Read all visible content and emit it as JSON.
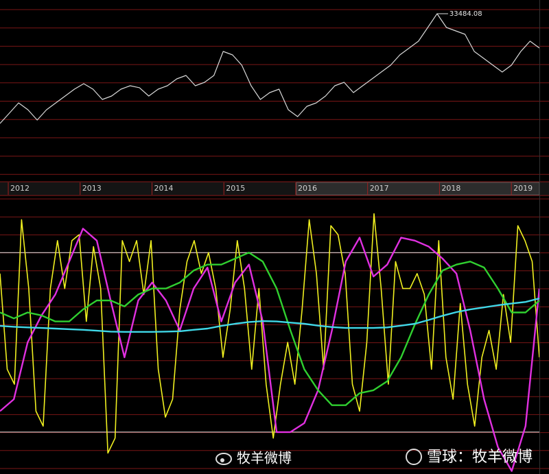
{
  "chart_data": [
    {
      "type": "line",
      "xlim": [
        2011.885,
        2019.39
      ],
      "xticks": [
        2012,
        2013,
        2014,
        2015,
        2016,
        2017,
        2018,
        2019
      ],
      "ylim": [
        10440,
        35400
      ],
      "grid": true,
      "series": [
        {
          "color": "#d8d8d8",
          "values": [
            18120,
            19560,
            21000,
            20040,
            18600,
            20040,
            21000,
            21960,
            22920,
            23690,
            22920,
            21480,
            21960,
            22920,
            23400,
            23120,
            21960,
            22920,
            23400,
            24360,
            24840,
            23400,
            23880,
            24840,
            28200,
            27720,
            26280,
            23400,
            21480,
            22440,
            22920,
            20040,
            19080,
            20520,
            21000,
            21960,
            23400,
            23880,
            22440,
            23400,
            24360,
            25320,
            26280,
            27720,
            28680,
            29640,
            31560,
            33484.08,
            31560,
            31080,
            30600,
            28200,
            27240,
            26280,
            25320,
            26280,
            28200,
            29640,
            28680
          ]
        }
      ]
    },
    {
      "type": "line",
      "ylim": [
        6,
        100
      ],
      "reference_lines": [
        80,
        20
      ],
      "grid": true,
      "series": [
        {
          "color": "#f0f020",
          "values": [
            73,
            41,
            36,
            91,
            68,
            27,
            22,
            68,
            84,
            68,
            84,
            86,
            57,
            82,
            68,
            13,
            18,
            84,
            77,
            84,
            66,
            84,
            41,
            25,
            31,
            61,
            77,
            84,
            73,
            80,
            68,
            45,
            61,
            84,
            68,
            41,
            68,
            36,
            18,
            36,
            50,
            36,
            61,
            91,
            73,
            41,
            89,
            86,
            73,
            36,
            27,
            50,
            93,
            68,
            36,
            77,
            68,
            68,
            73,
            66,
            41,
            84,
            45,
            31,
            63,
            36,
            22,
            45,
            54,
            41,
            66,
            50,
            89,
            84,
            77,
            45
          ]
        },
        {
          "color": "#e030e0",
          "values": [
            27,
            31,
            50,
            59,
            66,
            77,
            88,
            84,
            64,
            45,
            64,
            70,
            64,
            54,
            68,
            75,
            57,
            70,
            76,
            57,
            20,
            20,
            23,
            34,
            54,
            77,
            85,
            72,
            76,
            85,
            84,
            82,
            78,
            73,
            54,
            31,
            15,
            7,
            22,
            68
          ]
        },
        {
          "color": "#30d030",
          "values": [
            60,
            58,
            60,
            59,
            57,
            57,
            61,
            64,
            64,
            62,
            66,
            68,
            68,
            70,
            74,
            76,
            76,
            78,
            80,
            77,
            68,
            54,
            41,
            34,
            29,
            29,
            33,
            34,
            37,
            45,
            56,
            66,
            74,
            76,
            77,
            75,
            68,
            60,
            60,
            64
          ]
        },
        {
          "color": "#40d8e8",
          "values": [
            55.5,
            55.2,
            55,
            54.8,
            54.6,
            54.4,
            54.2,
            53.9,
            53.6,
            53.5,
            53.5,
            53.5,
            53.6,
            53.7,
            54.2,
            54.6,
            55.5,
            56.2,
            56.8,
            57.1,
            57,
            56.6,
            56.2,
            55.6,
            55.1,
            54.8,
            54.8,
            54.8,
            55,
            55.6,
            56.2,
            57.5,
            58.9,
            60.1,
            61,
            61.7,
            62.4,
            63,
            63.5,
            64.7
          ]
        }
      ]
    }
  ],
  "watermarks": [
    "牧羊微博",
    "雪球：牧羊微博"
  ]
}
